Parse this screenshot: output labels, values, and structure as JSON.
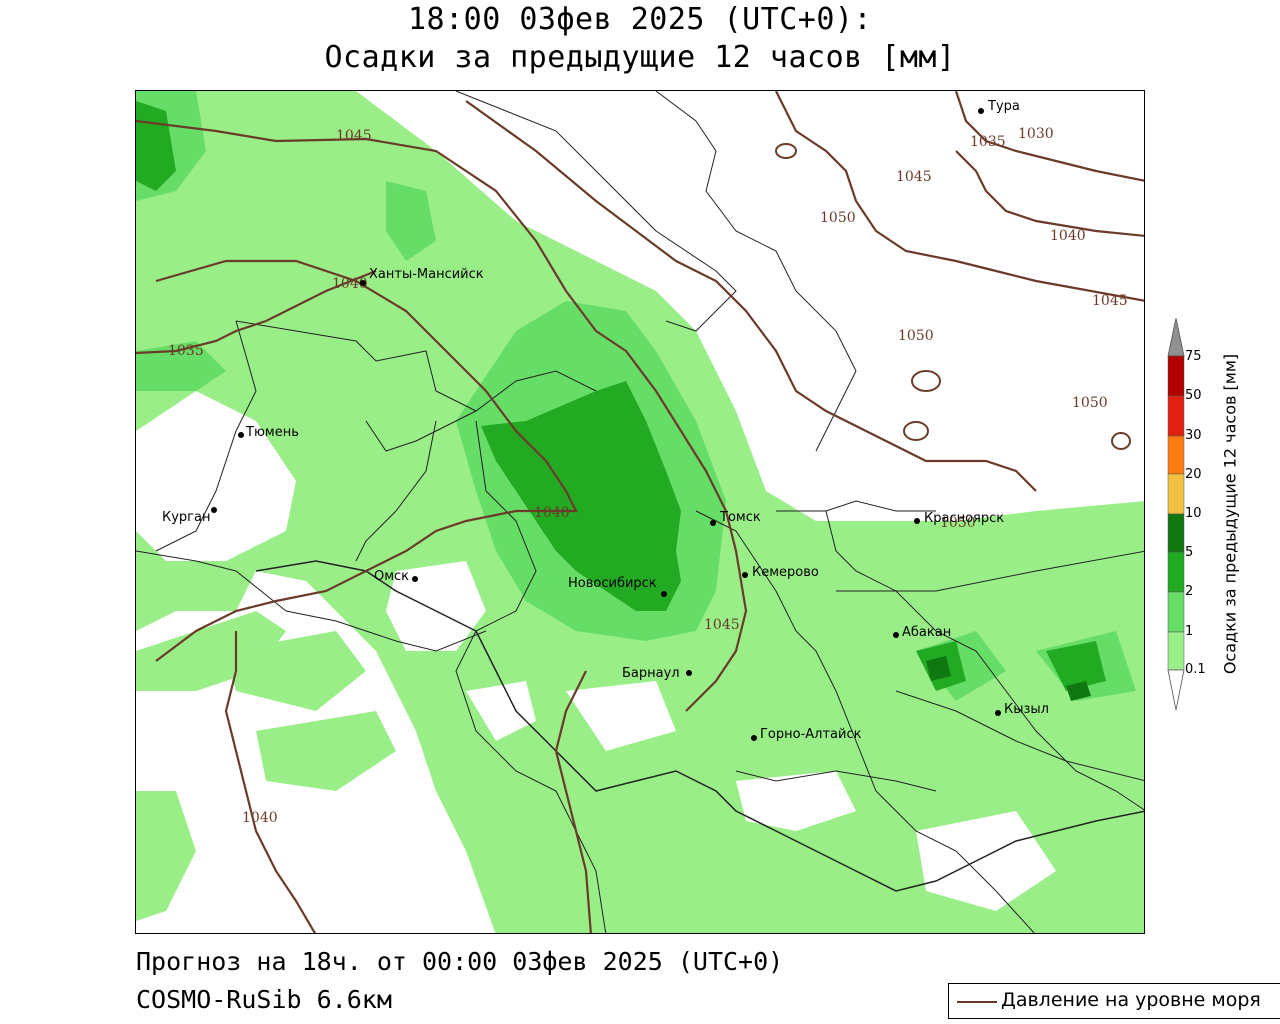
{
  "title": {
    "line1": "18:00 03фев 2025 (UTC+0):",
    "line2": "Осадки за предыдущие 12 часов [мм]"
  },
  "footer": {
    "forecast": "Прогноз на 18ч. от 00:00 03фев 2025 (UTC+0)",
    "model": "COSMO-RuSib 6.6км"
  },
  "legend": {
    "pressure_label": "Давление на уровне моря"
  },
  "colorbar": {
    "title": "Осадки за предыдущие 12 часов [мм]",
    "levels": [
      "0.1",
      "1",
      "2",
      "5",
      "10",
      "20",
      "30",
      "50",
      "75"
    ],
    "colors": [
      "#99ee88",
      "#66dd66",
      "#22aa22",
      "#117711",
      "#f4c040",
      "#ff7a10",
      "#e02010",
      "#b00000",
      "#909090"
    ]
  },
  "cities": [
    {
      "name": "Тура"
    },
    {
      "name": "Ханты-Мансийск"
    },
    {
      "name": "Тюмень"
    },
    {
      "name": "Курган"
    },
    {
      "name": "Омск"
    },
    {
      "name": "Томск"
    },
    {
      "name": "Красноярск"
    },
    {
      "name": "Кемерово"
    },
    {
      "name": "Новосибирск"
    },
    {
      "name": "Абакан"
    },
    {
      "name": "Барнаул"
    },
    {
      "name": "Кызыл"
    },
    {
      "name": "Горно-Алтайск"
    }
  ],
  "isobar_labels": [
    "1045",
    "1035",
    "1030",
    "1045",
    "1050",
    "1040",
    "1040",
    "1045",
    "1050",
    "1035",
    "1050",
    "1040",
    "1050",
    "1045",
    "1040"
  ]
}
